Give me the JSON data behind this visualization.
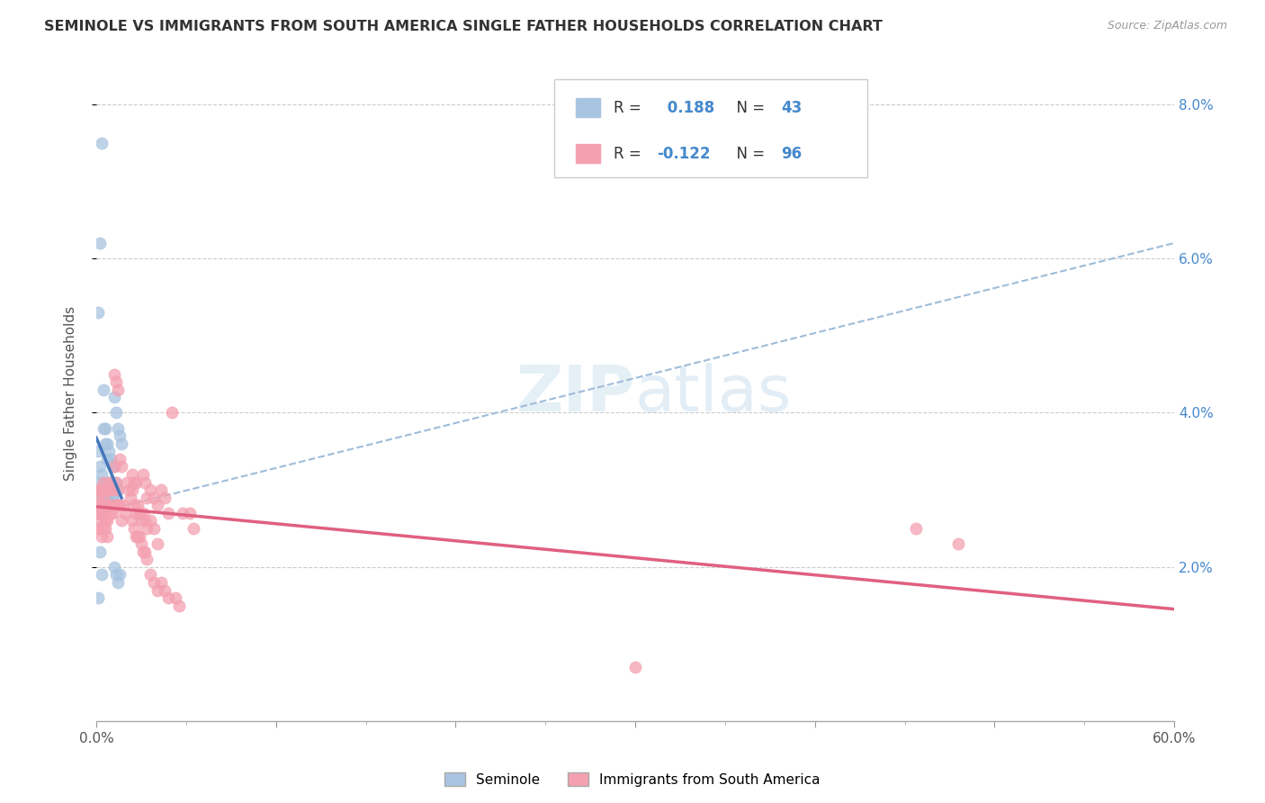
{
  "title": "SEMINOLE VS IMMIGRANTS FROM SOUTH AMERICA SINGLE FATHER HOUSEHOLDS CORRELATION CHART",
  "source": "Source: ZipAtlas.com",
  "ylabel": "Single Father Households",
  "xlim": [
    0,
    0.6
  ],
  "ylim": [
    0,
    0.085
  ],
  "xtick_vals": [
    0.0,
    0.1,
    0.2,
    0.3,
    0.4,
    0.5,
    0.6
  ],
  "ytick_vals": [
    0.02,
    0.04,
    0.06,
    0.08
  ],
  "ytick_labels": [
    "2.0%",
    "4.0%",
    "6.0%",
    "8.0%"
  ],
  "grid_color": "#cccccc",
  "background_color": "#ffffff",
  "seminole_color": "#a8c4e0",
  "immigrants_color": "#f4a0b0",
  "seminole_line_color": "#4477bb",
  "immigrants_line_color": "#e06080",
  "dashed_line_color": "#a0bcd8",
  "R_seminole": 0.188,
  "N_seminole": 43,
  "R_immigrants": -0.122,
  "N_immigrants": 96,
  "watermark": "ZIPatlas",
  "legend_label_seminole": "Seminole",
  "legend_label_immigrants": "Immigrants from South America",
  "seminole_x": [
    0.001,
    0.002,
    0.003,
    0.004,
    0.005,
    0.006,
    0.001,
    0.002,
    0.003,
    0.004,
    0.005,
    0.006,
    0.001,
    0.002,
    0.003,
    0.004,
    0.005,
    0.006,
    0.007,
    0.008,
    0.009,
    0.01,
    0.011,
    0.012,
    0.007,
    0.008,
    0.009,
    0.01,
    0.011,
    0.012,
    0.001,
    0.002,
    0.003,
    0.007,
    0.008,
    0.009,
    0.01,
    0.011,
    0.012,
    0.013,
    0.014,
    0.013,
    0.001
  ],
  "seminole_y": [
    0.053,
    0.062,
    0.075,
    0.043,
    0.038,
    0.036,
    0.035,
    0.033,
    0.032,
    0.031,
    0.03,
    0.029,
    0.031,
    0.03,
    0.029,
    0.038,
    0.036,
    0.034,
    0.035,
    0.034,
    0.033,
    0.042,
    0.04,
    0.038,
    0.031,
    0.03,
    0.029,
    0.033,
    0.031,
    0.03,
    0.027,
    0.022,
    0.019,
    0.031,
    0.03,
    0.029,
    0.02,
    0.019,
    0.018,
    0.037,
    0.036,
    0.019,
    0.016
  ],
  "immigrants_x": [
    0.001,
    0.002,
    0.003,
    0.001,
    0.002,
    0.003,
    0.001,
    0.002,
    0.003,
    0.001,
    0.002,
    0.003,
    0.004,
    0.005,
    0.006,
    0.004,
    0.005,
    0.006,
    0.004,
    0.005,
    0.006,
    0.004,
    0.005,
    0.006,
    0.007,
    0.008,
    0.009,
    0.007,
    0.008,
    0.009,
    0.01,
    0.011,
    0.012,
    0.01,
    0.011,
    0.012,
    0.01,
    0.011,
    0.012,
    0.013,
    0.014,
    0.013,
    0.014,
    0.015,
    0.016,
    0.017,
    0.018,
    0.019,
    0.02,
    0.021,
    0.022,
    0.02,
    0.021,
    0.022,
    0.02,
    0.021,
    0.022,
    0.023,
    0.024,
    0.025,
    0.023,
    0.024,
    0.025,
    0.026,
    0.027,
    0.028,
    0.026,
    0.027,
    0.028,
    0.026,
    0.027,
    0.028,
    0.03,
    0.032,
    0.034,
    0.03,
    0.032,
    0.034,
    0.03,
    0.032,
    0.034,
    0.036,
    0.038,
    0.04,
    0.036,
    0.038,
    0.04,
    0.042,
    0.044,
    0.046,
    0.048,
    0.3,
    0.052,
    0.054,
    0.456,
    0.48
  ],
  "immigrants_y": [
    0.03,
    0.03,
    0.03,
    0.029,
    0.028,
    0.028,
    0.027,
    0.027,
    0.026,
    0.025,
    0.025,
    0.024,
    0.031,
    0.03,
    0.03,
    0.029,
    0.028,
    0.028,
    0.027,
    0.026,
    0.026,
    0.025,
    0.025,
    0.024,
    0.031,
    0.03,
    0.03,
    0.028,
    0.027,
    0.027,
    0.045,
    0.044,
    0.043,
    0.033,
    0.031,
    0.03,
    0.028,
    0.028,
    0.028,
    0.034,
    0.033,
    0.028,
    0.026,
    0.028,
    0.027,
    0.031,
    0.03,
    0.029,
    0.032,
    0.031,
    0.031,
    0.03,
    0.028,
    0.027,
    0.026,
    0.025,
    0.024,
    0.028,
    0.027,
    0.026,
    0.024,
    0.024,
    0.023,
    0.032,
    0.031,
    0.029,
    0.027,
    0.026,
    0.025,
    0.022,
    0.022,
    0.021,
    0.03,
    0.029,
    0.028,
    0.026,
    0.025,
    0.023,
    0.019,
    0.018,
    0.017,
    0.03,
    0.029,
    0.027,
    0.018,
    0.017,
    0.016,
    0.04,
    0.016,
    0.015,
    0.027,
    0.007,
    0.027,
    0.025,
    0.025,
    0.023
  ],
  "dashed_line_x": [
    0.0,
    0.6
  ],
  "dashed_line_y": [
    0.027,
    0.062
  ]
}
